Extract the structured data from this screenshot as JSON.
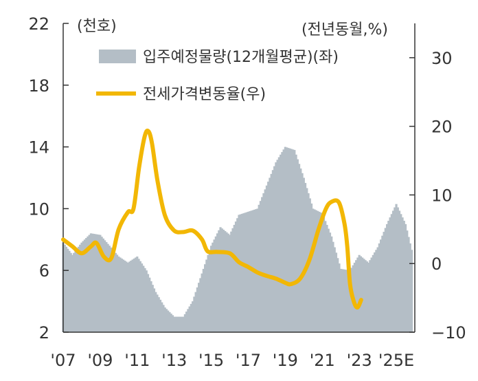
{
  "chart_data": {
    "type": "bar+line",
    "left_axis": {
      "unit": "(천호)",
      "ticks": [
        2,
        6,
        10,
        14,
        18,
        22
      ],
      "ylim": [
        2,
        22
      ]
    },
    "right_axis": {
      "unit": "(전년동월,%)",
      "ticks": [
        -10,
        0,
        10,
        20,
        30
      ],
      "ylim": [
        -10,
        35
      ]
    },
    "x_labels": [
      "'07",
      "'09",
      "'11",
      "'13",
      "'15",
      "'17",
      "'19",
      "'21",
      "'23",
      "'25E"
    ],
    "xlim": [
      2007.0,
      2026.0
    ],
    "grid": false,
    "colors": {
      "bars": "#b4bec6",
      "line": "#f2b705"
    },
    "series": [
      {
        "name": "입주예정물량(12개월평균)(좌)",
        "type": "bar",
        "axis": "left",
        "points": [
          [
            2007.0,
            7.8
          ],
          [
            2007.5,
            7.0
          ],
          [
            2008.0,
            7.8
          ],
          [
            2008.5,
            8.4
          ],
          [
            2009.0,
            8.3
          ],
          [
            2009.5,
            7.6
          ],
          [
            2010.0,
            6.9
          ],
          [
            2010.5,
            6.5
          ],
          [
            2011.0,
            6.9
          ],
          [
            2011.5,
            6.0
          ],
          [
            2012.0,
            4.6
          ],
          [
            2012.5,
            3.6
          ],
          [
            2013.0,
            3.0
          ],
          [
            2013.5,
            3.0
          ],
          [
            2014.0,
            4.0
          ],
          [
            2014.5,
            5.8
          ],
          [
            2015.0,
            7.6
          ],
          [
            2015.5,
            8.8
          ],
          [
            2016.0,
            8.3
          ],
          [
            2016.5,
            9.6
          ],
          [
            2017.0,
            9.8
          ],
          [
            2017.5,
            10.0
          ],
          [
            2018.0,
            11.5
          ],
          [
            2018.5,
            13.0
          ],
          [
            2019.0,
            14.0
          ],
          [
            2019.5,
            13.8
          ],
          [
            2020.0,
            12.0
          ],
          [
            2020.5,
            10.0
          ],
          [
            2021.0,
            9.7
          ],
          [
            2021.5,
            8.2
          ],
          [
            2022.0,
            6.1
          ],
          [
            2022.5,
            6.0
          ],
          [
            2022.7,
            6.4
          ],
          [
            2023.0,
            7.0
          ],
          [
            2023.5,
            6.5
          ],
          [
            2024.0,
            7.5
          ],
          [
            2024.5,
            9.0
          ],
          [
            2025.0,
            10.3
          ],
          [
            2025.5,
            9.0
          ],
          [
            2025.9,
            7.0
          ]
        ]
      },
      {
        "name": "전세가격변동율(우)",
        "type": "line",
        "axis": "right",
        "points": [
          [
            2007.0,
            3.5
          ],
          [
            2007.5,
            2.5
          ],
          [
            2008.0,
            1.5
          ],
          [
            2008.5,
            2.5
          ],
          [
            2008.8,
            3.0
          ],
          [
            2009.2,
            1.0
          ],
          [
            2009.6,
            0.8
          ],
          [
            2010.0,
            5.0
          ],
          [
            2010.5,
            7.5
          ],
          [
            2010.8,
            8.0
          ],
          [
            2011.1,
            14.0
          ],
          [
            2011.4,
            18.5
          ],
          [
            2011.6,
            19.3
          ],
          [
            2011.8,
            17.5
          ],
          [
            2012.1,
            12.0
          ],
          [
            2012.5,
            7.0
          ],
          [
            2013.0,
            4.8
          ],
          [
            2013.5,
            4.6
          ],
          [
            2014.0,
            4.8
          ],
          [
            2014.5,
            3.5
          ],
          [
            2014.8,
            1.8
          ],
          [
            2015.3,
            1.7
          ],
          [
            2016.0,
            1.5
          ],
          [
            2016.5,
            0.2
          ],
          [
            2017.0,
            -0.5
          ],
          [
            2017.5,
            -1.3
          ],
          [
            2018.0,
            -1.8
          ],
          [
            2018.5,
            -2.2
          ],
          [
            2019.0,
            -2.8
          ],
          [
            2019.3,
            -3.0
          ],
          [
            2019.8,
            -2.2
          ],
          [
            2020.3,
            0.5
          ],
          [
            2020.8,
            5.0
          ],
          [
            2021.2,
            8.0
          ],
          [
            2021.5,
            9.0
          ],
          [
            2021.9,
            8.9
          ],
          [
            2022.2,
            5.8
          ],
          [
            2022.35,
            2.5
          ],
          [
            2022.5,
            -3.0
          ],
          [
            2022.7,
            -5.5
          ],
          [
            2022.9,
            -6.4
          ],
          [
            2023.1,
            -5.3
          ]
        ]
      }
    ]
  }
}
